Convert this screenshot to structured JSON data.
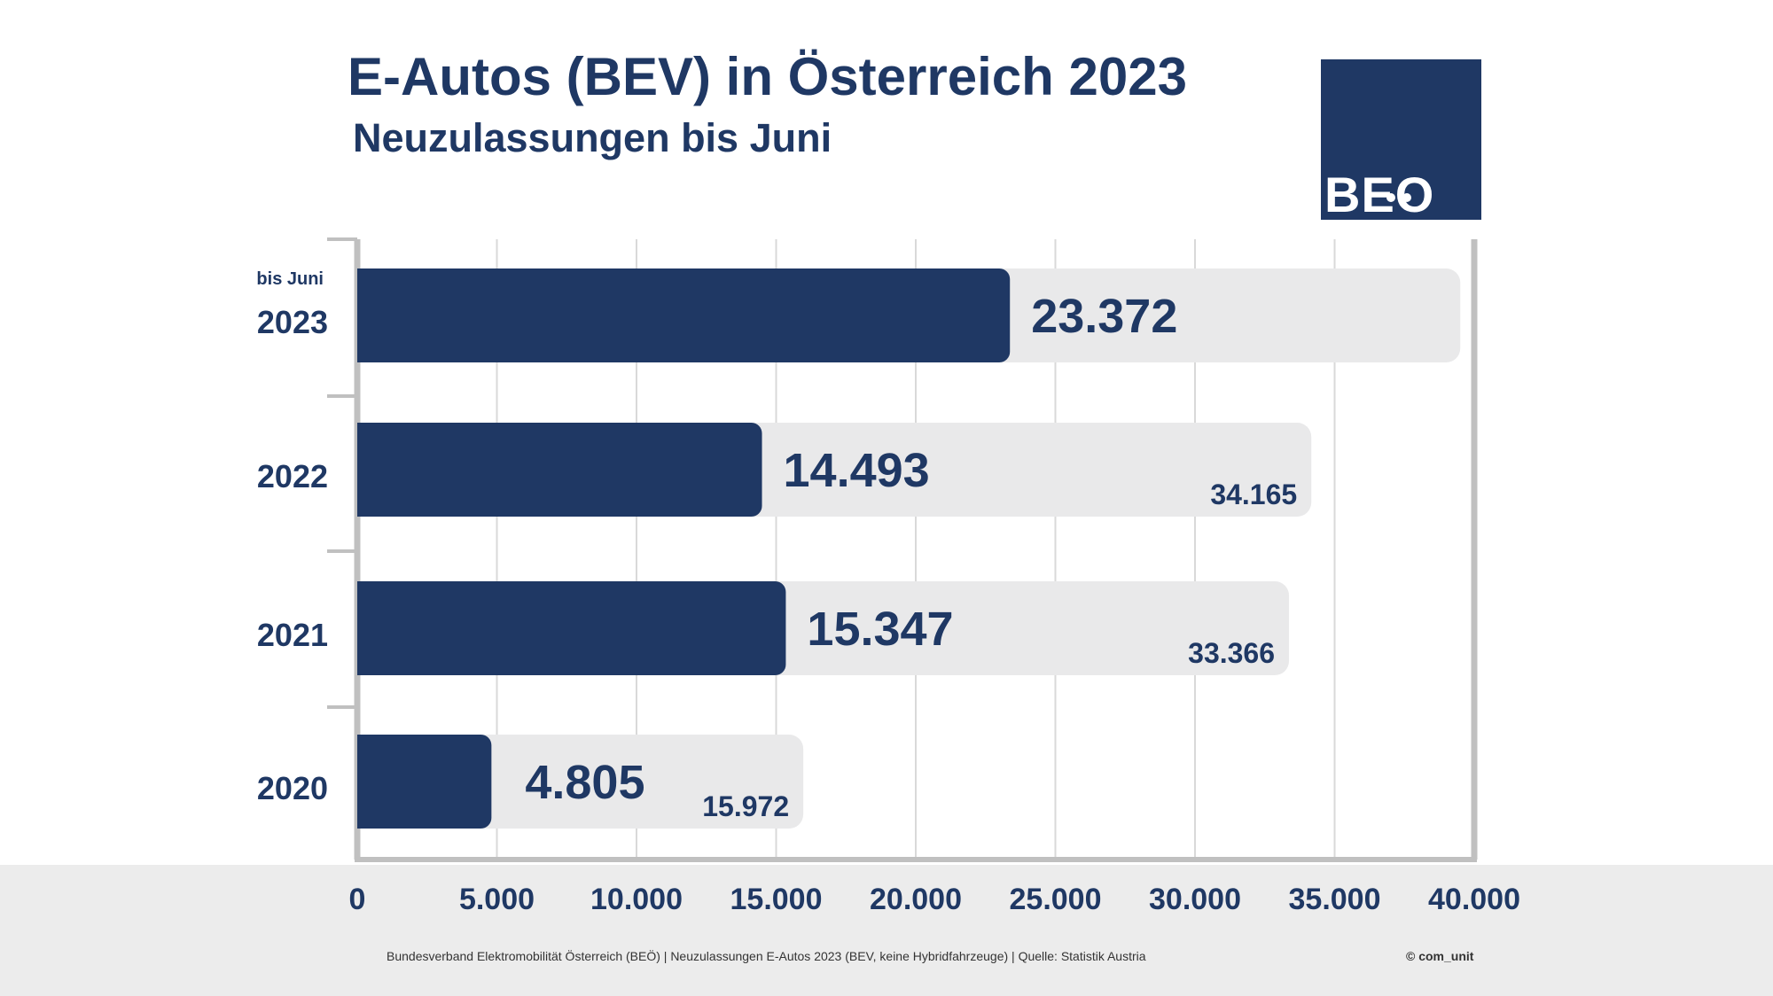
{
  "header": {
    "title": "E-Autos (BEV) in Österreich 2023",
    "subtitle": "Neuzulassungen bis Juni"
  },
  "logo": {
    "text": "BEO"
  },
  "footer": {
    "source": "Bundesverband Elektromobilität Österreich (BEÖ) | Neuzulassungen E-Autos 2023 (BEV, keine Hybridfahrzeuge) | Quelle: Statistik Austria",
    "credit": "© com_unit"
  },
  "colors": {
    "bar": "#1f3864",
    "background_bar": "#e9e9ea",
    "grid": "#d9d9d9",
    "axis": "#c0c0c0",
    "text": "#1f3864",
    "footer_band": "#ececec"
  },
  "chart_data": {
    "type": "bar",
    "orientation": "horizontal",
    "categories": [
      "2023",
      "2022",
      "2021",
      "2020"
    ],
    "category_notes": [
      "bis Juni",
      "",
      "",
      ""
    ],
    "series": [
      {
        "values": [
          23372,
          14493,
          15347,
          4805
        ],
        "labels": [
          "23.372",
          "14.493",
          "15.347",
          "4.805"
        ]
      },
      {
        "values": [
          39500,
          34165,
          33366,
          15972
        ],
        "labels": [
          "",
          "34.165",
          "33.366",
          "15.972"
        ]
      }
    ],
    "xlim": [
      0,
      40000
    ],
    "xticks": [
      0,
      5000,
      10000,
      15000,
      20000,
      25000,
      30000,
      35000,
      40000
    ],
    "xtick_labels": [
      "0",
      "5.000",
      "10.000",
      "15.000",
      "20.000",
      "25.000",
      "30.000",
      "35.000",
      "40.000"
    ],
    "grid": true
  }
}
